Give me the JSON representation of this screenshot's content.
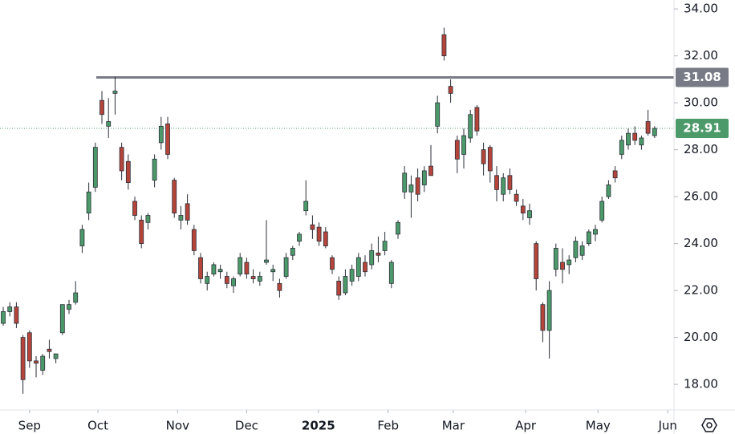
{
  "chart_data": {
    "type": "candlestick",
    "open": [
      20.6,
      21.1,
      21.3,
      20.0,
      20.2,
      19.0,
      18.6,
      19.5,
      19.1,
      20.2,
      21.2,
      21.5,
      23.9,
      25.3,
      26.4,
      30.1,
      29.0,
      30.4,
      28.1,
      27.5,
      25.8,
      25.0,
      24.9,
      26.7,
      28.3,
      29.1,
      26.7,
      25.0,
      25.7,
      24.6,
      23.4,
      22.3,
      22.7,
      22.8,
      22.6,
      22.2,
      22.7,
      23.2,
      22.6,
      22.4,
      23.2,
      22.8,
      22.3,
      22.6,
      23.5,
      24.1,
      25.4,
      24.8,
      24.7,
      24.5,
      23.4,
      22.4,
      21.9,
      22.4,
      22.6,
      23.2,
      23.1,
      23.6,
      23.7,
      22.3,
      24.4,
      26.2,
      26.2,
      26.8,
      26.5,
      27.3,
      29.0,
      32.9,
      30.7,
      28.4,
      27.8,
      28.5,
      29.8,
      28.0,
      28.1,
      26.9,
      26.1,
      26.9,
      26.1,
      25.6,
      25.1,
      24.0,
      21.4,
      20.3,
      22.9,
      23.2,
      23.1,
      23.4,
      23.5,
      24.0,
      24.4,
      25.0,
      26.0,
      27.1,
      27.8,
      28.2,
      28.7,
      28.2,
      29.2,
      28.6
    ],
    "high": [
      21.3,
      21.5,
      21.5,
      20.1,
      20.3,
      19.2,
      19.3,
      19.9,
      19.3,
      21.4,
      21.6,
      22.4,
      24.8,
      26.6,
      28.3,
      30.5,
      30.2,
      31.1,
      28.3,
      27.8,
      26.0,
      25.2,
      25.3,
      27.8,
      29.4,
      29.4,
      26.8,
      25.6,
      26.1,
      24.8,
      23.6,
      22.8,
      23.2,
      23.1,
      22.8,
      22.6,
      23.6,
      23.4,
      22.9,
      22.8,
      25.0,
      23.1,
      22.5,
      23.6,
      23.9,
      24.5,
      26.7,
      25.2,
      24.9,
      24.7,
      23.5,
      22.6,
      22.9,
      23.1,
      23.6,
      23.5,
      24.0,
      24.3,
      24.5,
      23.3,
      25.0,
      27.3,
      26.9,
      27.2,
      27.3,
      28.2,
      30.3,
      33.2,
      31.0,
      28.6,
      28.9,
      29.7,
      29.9,
      28.3,
      28.2,
      27.3,
      27.0,
      27.2,
      26.3,
      25.9,
      25.7,
      24.1,
      21.5,
      22.4,
      24.0,
      23.8,
      23.5,
      24.3,
      24.1,
      24.6,
      24.8,
      26.0,
      26.7,
      27.3,
      28.6,
      28.9,
      29.0,
      28.6,
      29.7,
      29.0
    ],
    "low": [
      20.5,
      20.9,
      20.4,
      17.6,
      18.7,
      18.3,
      18.4,
      19.1,
      18.9,
      20.1,
      21.0,
      21.4,
      23.6,
      25.0,
      26.2,
      29.1,
      28.5,
      29.5,
      26.7,
      26.3,
      25.0,
      23.8,
      24.6,
      26.4,
      28.0,
      27.6,
      25.1,
      24.6,
      24.8,
      23.5,
      22.3,
      22.0,
      22.6,
      22.5,
      22.1,
      21.9,
      22.6,
      22.5,
      22.3,
      22.2,
      23.1,
      22.4,
      21.7,
      22.5,
      23.3,
      23.9,
      25.2,
      24.2,
      23.9,
      23.8,
      22.7,
      21.6,
      21.8,
      22.2,
      22.4,
      22.6,
      22.9,
      23.2,
      23.5,
      22.1,
      24.2,
      25.9,
      25.1,
      25.8,
      26.2,
      26.9,
      28.7,
      31.8,
      30.0,
      27.0,
      27.2,
      28.3,
      28.6,
      26.9,
      26.6,
      25.8,
      25.8,
      26.1,
      25.6,
      25.0,
      24.8,
      22.0,
      19.8,
      19.1,
      22.6,
      22.3,
      22.7,
      23.2,
      23.3,
      23.9,
      24.1,
      24.9,
      25.9,
      26.6,
      27.6,
      28.0,
      28.2,
      28.0,
      28.6,
      28.5
    ],
    "close": [
      21.1,
      21.3,
      20.6,
      18.2,
      19.0,
      18.9,
      19.2,
      19.4,
      19.3,
      21.4,
      21.4,
      21.9,
      24.6,
      26.2,
      28.1,
      29.5,
      29.2,
      30.5,
      27.1,
      26.6,
      25.2,
      24.0,
      25.2,
      27.6,
      29.0,
      27.8,
      25.3,
      25.2,
      25.0,
      23.7,
      22.5,
      22.6,
      23.1,
      22.9,
      22.3,
      22.5,
      23.4,
      22.7,
      22.5,
      22.6,
      23.3,
      22.9,
      22.0,
      23.4,
      23.8,
      24.4,
      25.8,
      24.6,
      24.1,
      23.9,
      22.9,
      21.8,
      22.6,
      22.9,
      23.4,
      22.8,
      23.7,
      23.5,
      24.1,
      23.2,
      24.9,
      27.0,
      26.5,
      26.1,
      27.1,
      26.9,
      30.0,
      32.0,
      30.4,
      27.6,
      28.6,
      29.5,
      28.8,
      27.4,
      27.1,
      26.3,
      26.8,
      26.3,
      25.8,
      25.3,
      25.4,
      22.5,
      20.3,
      22.0,
      23.8,
      22.9,
      23.3,
      24.1,
      23.9,
      24.5,
      24.6,
      25.8,
      26.5,
      26.8,
      28.4,
      28.7,
      28.4,
      28.5,
      28.7,
      28.91
    ],
    "up_color": "#4c9a6a",
    "down_color": "#b5453a",
    "xlim": [
      -0.49,
      101.95
    ],
    "xticks": [
      {
        "value": 4.0,
        "label": "Sep"
      },
      {
        "value": 14.4,
        "label": "Oct"
      },
      {
        "value": 26.5,
        "label": "Nov"
      },
      {
        "value": 37.0,
        "label": "Dec"
      },
      {
        "value": 47.9,
        "label": "2025"
      },
      {
        "value": 58.5,
        "label": "Feb"
      },
      {
        "value": 68.4,
        "label": "Mar"
      },
      {
        "value": 79.4,
        "label": "Apr"
      },
      {
        "value": 90.4,
        "label": "May"
      },
      {
        "value": 101.0,
        "label": "Jun"
      }
    ],
    "ylim": [
      16.91,
      34.38
    ],
    "yticks": [
      {
        "value": 18,
        "label": "18.00"
      },
      {
        "value": 20,
        "label": "20.00"
      },
      {
        "value": 22,
        "label": "22.00"
      },
      {
        "value": 24,
        "label": "24.00"
      },
      {
        "value": 26,
        "label": "26.00"
      },
      {
        "value": 28,
        "label": "28.00"
      },
      {
        "value": 30,
        "label": "30.00"
      },
      {
        "value": 32,
        "label": "32.00"
      },
      {
        "value": 34,
        "label": "34.00"
      }
    ],
    "resistance": 31.08,
    "resistance_color": "#787b86",
    "last_price": 28.91,
    "last_price_color": "#4c9a6a"
  }
}
